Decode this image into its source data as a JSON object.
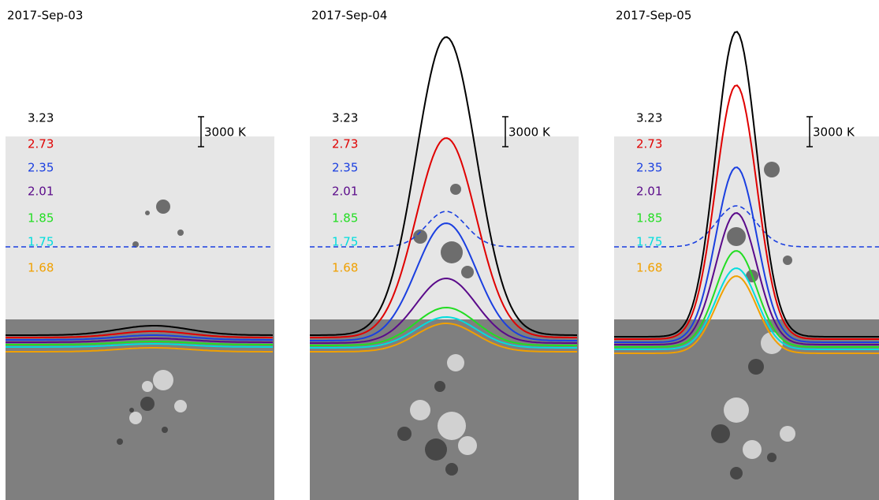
{
  "panels": [
    {
      "date": "2017-Sep-03",
      "scale_label": "3000 K",
      "legend": [
        {
          "label": "3.23",
          "color": "#000000"
        },
        {
          "label": "2.73",
          "color": "#e00000"
        },
        {
          "label": "2.35",
          "color": "#1a3fe0"
        },
        {
          "label": "2.01",
          "color": "#5a0a8a"
        },
        {
          "label": "1.85",
          "color": "#22dd22"
        },
        {
          "label": "1.75",
          "color": "#00dddd"
        },
        {
          "label": "1.68",
          "color": "#f0a000"
        }
      ]
    },
    {
      "date": "2017-Sep-04",
      "scale_label": "3000 K",
      "legend": [
        {
          "label": "3.23",
          "color": "#000000"
        },
        {
          "label": "2.73",
          "color": "#e00000"
        },
        {
          "label": "2.35",
          "color": "#1a3fe0"
        },
        {
          "label": "2.01",
          "color": "#5a0a8a"
        },
        {
          "label": "1.85",
          "color": "#22dd22"
        },
        {
          "label": "1.75",
          "color": "#00dddd"
        },
        {
          "label": "1.68",
          "color": "#f0a000"
        }
      ]
    },
    {
      "date": "2017-Sep-05",
      "scale_label": "3000 K",
      "legend": [
        {
          "label": "3.23",
          "color": "#000000"
        },
        {
          "label": "2.73",
          "color": "#e00000"
        },
        {
          "label": "2.35",
          "color": "#1a3fe0"
        },
        {
          "label": "2.01",
          "color": "#5a0a8a"
        },
        {
          "label": "1.85",
          "color": "#22dd22"
        },
        {
          "label": "1.75",
          "color": "#00dddd"
        },
        {
          "label": "1.68",
          "color": "#f0a000"
        }
      ]
    }
  ]
}
